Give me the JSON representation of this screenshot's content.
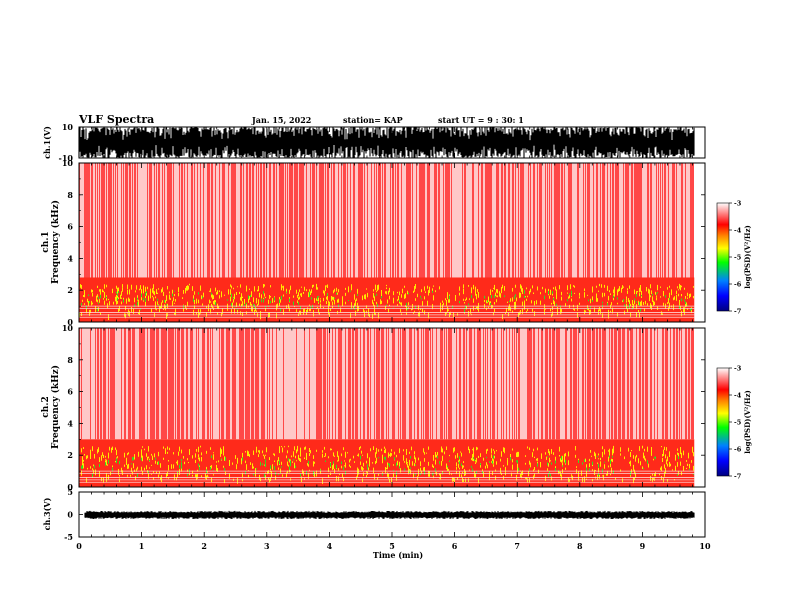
{
  "header": {
    "title": "VLF Spectra",
    "date": "Jan. 15, 2022",
    "station": "station= KAP",
    "start_ut": "start UT =  9 : 30: 1"
  },
  "chart_data": [
    {
      "type": "line",
      "name": "ch1-waveform",
      "ylabel": "ch.1(V)",
      "ylim": [
        -10,
        10
      ],
      "yticks": [
        "10",
        "-10"
      ],
      "xlim": [
        0,
        10
      ],
      "fill_color": "#000000",
      "end_minute": 9.83
    },
    {
      "type": "heatmap",
      "name": "ch1-spectrogram",
      "ylabel": "ch.1 Frequency (kHz)",
      "ylabel_lines": [
        "ch.1",
        "Frequency (kHz)"
      ],
      "ylim": [
        0,
        10
      ],
      "yticks": [
        "0",
        "2",
        "4",
        "6",
        "8",
        "10"
      ],
      "xlim": [
        0,
        10
      ],
      "end_minute": 9.83,
      "noise_band_khz": [
        0.5,
        2.8
      ],
      "colorbar": {
        "label": "log(PSD)(V²/Hz)",
        "ticks": [
          "-3",
          "-4",
          "-5",
          "-6",
          "-7"
        ],
        "range": [
          -7,
          -3
        ],
        "colors": [
          "#000080",
          "#0000ff",
          "#0080ff",
          "#00ff00",
          "#ffff00",
          "#ff8000",
          "#ff0000",
          "#ffffff"
        ]
      }
    },
    {
      "type": "heatmap",
      "name": "ch2-spectrogram",
      "ylabel": "ch.2 Frequency (kHz)",
      "ylabel_lines": [
        "ch.2",
        "Frequency (kHz)"
      ],
      "ylim": [
        0,
        10
      ],
      "yticks": [
        "0",
        "2",
        "4",
        "6",
        "8",
        "10"
      ],
      "xlim": [
        0,
        10
      ],
      "end_minute": 9.83,
      "noise_band_khz": [
        0.5,
        3.0
      ],
      "colorbar": {
        "label": "log(PSD)(V²/Hz)",
        "ticks": [
          "-3",
          "-4",
          "-5",
          "-6",
          "-7"
        ],
        "range": [
          -7,
          -3
        ],
        "colors": [
          "#000080",
          "#0000ff",
          "#0080ff",
          "#00ff00",
          "#ffff00",
          "#ff8000",
          "#ff0000",
          "#ffffff"
        ]
      }
    },
    {
      "type": "line",
      "name": "ch3-waveform",
      "ylabel": "ch.3(V)",
      "ylim": [
        -5,
        5
      ],
      "yticks": [
        "5",
        "0",
        "-5"
      ],
      "xlim": [
        0,
        10
      ],
      "level_v": [
        -0.6,
        0.4
      ],
      "end_minute": 9.83
    }
  ],
  "xaxis": {
    "label": "Time (min)",
    "ticks": [
      "0",
      "1",
      "2",
      "3",
      "4",
      "5",
      "6",
      "7",
      "8",
      "9",
      "10"
    ]
  }
}
